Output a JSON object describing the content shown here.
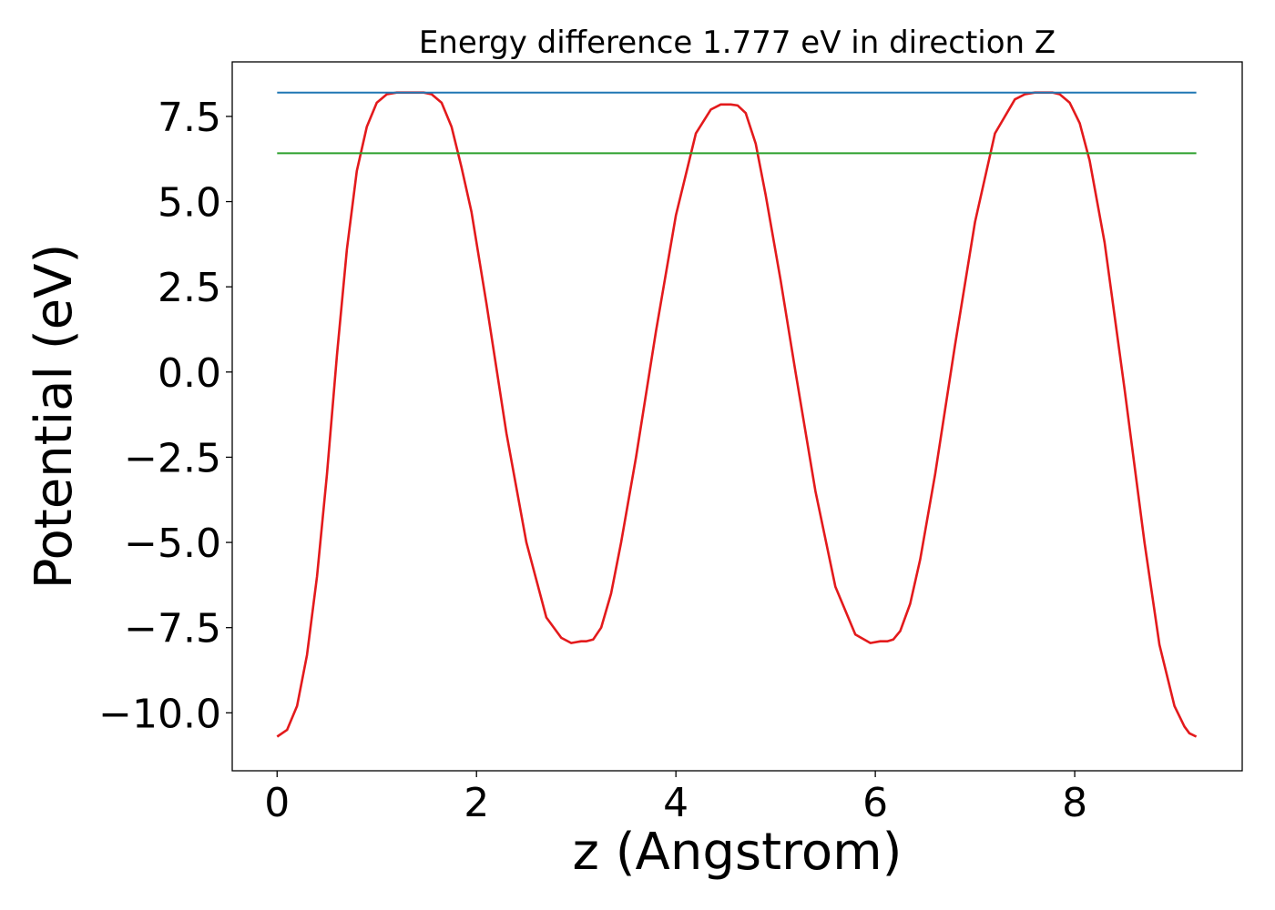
{
  "chart_data": {
    "type": "line",
    "title": "Energy difference 1.777 eV in direction Z",
    "xlabel": "z (Angstrom)",
    "ylabel": "Potential (eV)",
    "xlim": [
      -0.45,
      9.68
    ],
    "ylim": [
      -11.7,
      9.1
    ],
    "xticks": [
      0,
      2,
      4,
      6,
      8
    ],
    "xtick_labels": [
      "0",
      "2",
      "4",
      "6",
      "8"
    ],
    "yticks": [
      -10.0,
      -7.5,
      -5.0,
      -2.5,
      0.0,
      2.5,
      5.0,
      7.5
    ],
    "ytick_labels": [
      "−10.0",
      "−7.5",
      "−5.0",
      "−2.5",
      "0.0",
      "2.5",
      "5.0",
      "7.5"
    ],
    "grid": false,
    "legend": "none",
    "series": [
      {
        "color": "#e31a1c",
        "x": [
          0.0,
          0.1,
          0.2,
          0.3,
          0.4,
          0.5,
          0.6,
          0.7,
          0.8,
          0.9,
          1.0,
          1.1,
          1.2,
          1.3,
          1.4,
          1.47,
          1.55,
          1.65,
          1.75,
          1.85,
          1.95,
          2.1,
          2.3,
          2.5,
          2.7,
          2.85,
          2.95,
          3.05,
          3.1,
          3.17,
          3.25,
          3.35,
          3.45,
          3.6,
          3.8,
          4.0,
          4.2,
          4.35,
          4.45,
          4.55,
          4.62,
          4.7,
          4.8,
          4.9,
          5.05,
          5.2,
          5.4,
          5.6,
          5.8,
          5.95,
          6.05,
          6.12,
          6.18,
          6.25,
          6.35,
          6.45,
          6.6,
          6.8,
          7.0,
          7.2,
          7.4,
          7.5,
          7.6,
          7.7,
          7.78,
          7.85,
          7.95,
          8.05,
          8.15,
          8.3,
          8.5,
          8.7,
          8.85,
          9.0,
          9.1,
          9.15,
          9.22
        ],
        "y": [
          -10.7,
          -10.5,
          -9.8,
          -8.3,
          -6.0,
          -3.0,
          0.5,
          3.6,
          5.9,
          7.2,
          7.9,
          8.15,
          8.2,
          8.2,
          8.2,
          8.2,
          8.15,
          7.9,
          7.2,
          6.0,
          4.7,
          2.0,
          -1.8,
          -5.0,
          -7.2,
          -7.8,
          -7.95,
          -7.9,
          -7.9,
          -7.85,
          -7.5,
          -6.5,
          -5.0,
          -2.5,
          1.2,
          4.6,
          7.0,
          7.7,
          7.85,
          7.85,
          7.82,
          7.6,
          6.7,
          5.2,
          2.7,
          0.0,
          -3.5,
          -6.3,
          -7.7,
          -7.95,
          -7.9,
          -7.9,
          -7.85,
          -7.6,
          -6.8,
          -5.5,
          -3.0,
          0.8,
          4.4,
          7.0,
          8.0,
          8.15,
          8.2,
          8.2,
          8.2,
          8.15,
          7.9,
          7.3,
          6.2,
          3.8,
          -0.5,
          -5.0,
          -8.0,
          -9.8,
          -10.4,
          -10.6,
          -10.7
        ]
      },
      {
        "color": "#1f77b4",
        "x": [
          0.0,
          9.22
        ],
        "y": [
          8.2,
          8.2
        ]
      },
      {
        "color": "#2ca02c",
        "x": [
          0.0,
          9.22
        ],
        "y": [
          6.42,
          6.42
        ]
      }
    ]
  }
}
